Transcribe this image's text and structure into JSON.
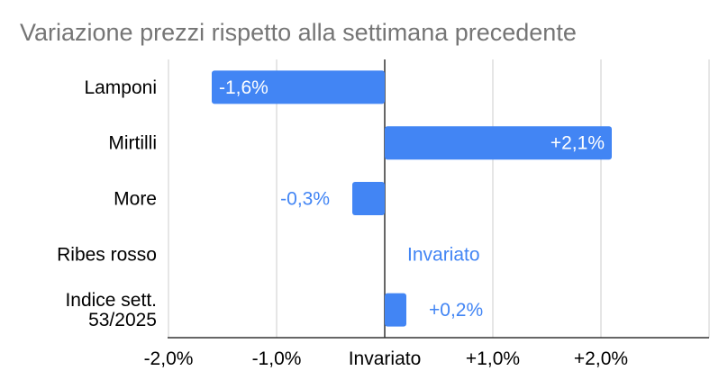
{
  "chart_data": {
    "type": "bar",
    "orientation": "horizontal",
    "title": "Variazione prezzi rispetto alla settimana precedente",
    "categories": [
      "Lamponi",
      "Mirtilli",
      "More",
      "Ribes rosso",
      "Indice sett.\n53/2025"
    ],
    "values": [
      -1.6,
      2.1,
      -0.3,
      0.0,
      0.2
    ],
    "data_labels": [
      "-1,6%",
      "+2,1%",
      "-0,3%",
      "Invariato",
      "+0,2%"
    ],
    "x_ticks": [
      {
        "value": -2,
        "label": "-2,0%"
      },
      {
        "value": -1,
        "label": "-1,0%"
      },
      {
        "value": 0,
        "label": "Invariato"
      },
      {
        "value": 1,
        "label": "+1,0%"
      },
      {
        "value": 2,
        "label": "+2,0%"
      }
    ],
    "xlim": [
      -2,
      3
    ],
    "xlabel": "",
    "ylabel": "",
    "grid": true,
    "legend": "none",
    "colors": {
      "bar": "#4285f4",
      "label_inside": "#ffffff",
      "label_outside": "#4285f4",
      "grid": "#cccccc",
      "axis": "#333333",
      "title": "#757575"
    }
  }
}
